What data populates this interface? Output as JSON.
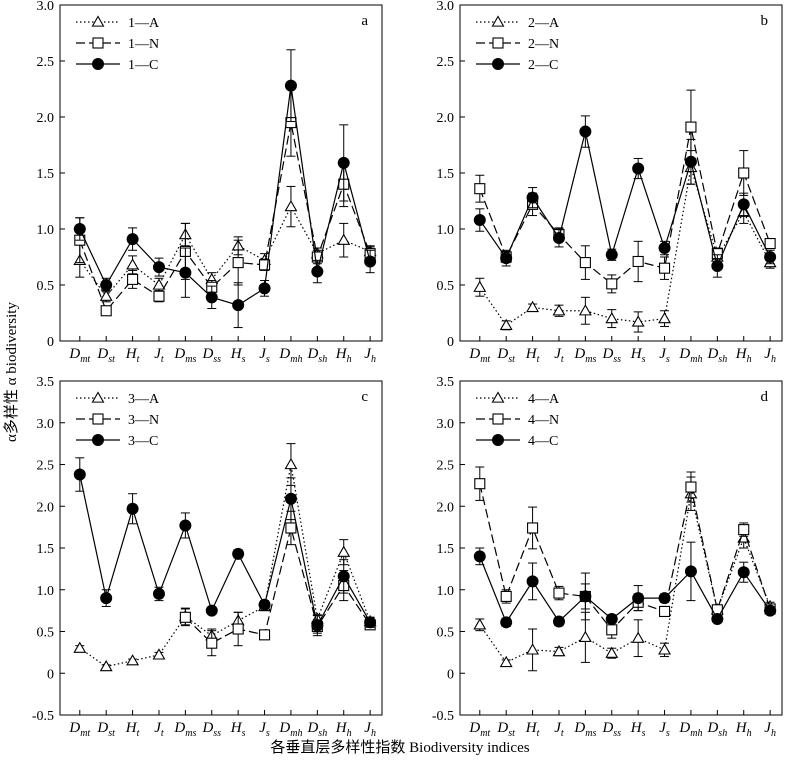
{
  "figure": {
    "ylabel": "α多样性 α biodiversity",
    "xlabel": "各垂直层多样性指数 Biodiversity indices"
  },
  "chart_data": [
    {
      "type": "line",
      "panel_label": "a",
      "categories": [
        {
          "base": "D",
          "sub": "mt"
        },
        {
          "base": "D",
          "sub": "st"
        },
        {
          "base": "H",
          "sub": "t"
        },
        {
          "base": "J",
          "sub": "t"
        },
        {
          "base": "D",
          "sub": "ms"
        },
        {
          "base": "D",
          "sub": "ss"
        },
        {
          "base": "H",
          "sub": "s"
        },
        {
          "base": "J",
          "sub": "s"
        },
        {
          "base": "D",
          "sub": "mh"
        },
        {
          "base": "D",
          "sub": "sh"
        },
        {
          "base": "H",
          "sub": "h"
        },
        {
          "base": "J",
          "sub": "h"
        }
      ],
      "ylim": [
        0,
        3.0
      ],
      "yticks": [
        0,
        0.5,
        1.0,
        1.5,
        2.0,
        2.5,
        3.0
      ],
      "legend_position": "top-left",
      "series": [
        {
          "name": "1—A",
          "marker": "triangle-open",
          "line": "dotted",
          "values": [
            0.72,
            0.4,
            0.68,
            0.5,
            0.95,
            0.55,
            0.85,
            0.72,
            1.2,
            0.78,
            0.9,
            0.8
          ],
          "errors": [
            0.15,
            0.05,
            0.08,
            0.06,
            0.1,
            0.06,
            0.08,
            0.06,
            0.18,
            0.05,
            0.15,
            0.05
          ]
        },
        {
          "name": "1—N",
          "marker": "square-open",
          "line": "dashed",
          "values": [
            0.9,
            0.27,
            0.55,
            0.4,
            0.8,
            0.48,
            0.7,
            0.68,
            1.95,
            0.75,
            1.4,
            0.78
          ],
          "errors": [
            0.2,
            0.04,
            0.08,
            0.05,
            0.25,
            0.06,
            0.2,
            0.05,
            0.3,
            0.06,
            0.2,
            0.06
          ]
        },
        {
          "name": "1—C",
          "marker": "circle-filled",
          "line": "solid",
          "values": [
            1.0,
            0.5,
            0.91,
            0.66,
            0.61,
            0.39,
            0.32,
            0.47,
            2.28,
            0.62,
            1.59,
            0.71
          ],
          "errors": [
            0.1,
            0.06,
            0.1,
            0.08,
            0.22,
            0.1,
            0.2,
            0.07,
            0.32,
            0.1,
            0.34,
            0.1
          ]
        }
      ]
    },
    {
      "type": "line",
      "panel_label": "b",
      "categories": [
        {
          "base": "D",
          "sub": "mt"
        },
        {
          "base": "D",
          "sub": "st"
        },
        {
          "base": "H",
          "sub": "t"
        },
        {
          "base": "J",
          "sub": "t"
        },
        {
          "base": "D",
          "sub": "ms"
        },
        {
          "base": "D",
          "sub": "ss"
        },
        {
          "base": "H",
          "sub": "s"
        },
        {
          "base": "J",
          "sub": "s"
        },
        {
          "base": "D",
          "sub": "mh"
        },
        {
          "base": "D",
          "sub": "sh"
        },
        {
          "base": "H",
          "sub": "h"
        },
        {
          "base": "J",
          "sub": "h"
        }
      ],
      "ylim": [
        0,
        3.0
      ],
      "yticks": [
        0,
        0.5,
        1.0,
        1.5,
        2.0,
        2.5,
        3.0
      ],
      "legend_position": "top-left",
      "series": [
        {
          "name": "2—A",
          "marker": "triangle-open",
          "line": "dotted",
          "values": [
            0.48,
            0.14,
            0.3,
            0.27,
            0.27,
            0.2,
            0.17,
            0.2,
            1.55,
            0.75,
            1.15,
            0.7
          ],
          "errors": [
            0.08,
            0.04,
            0.03,
            0.05,
            0.12,
            0.08,
            0.09,
            0.07,
            0.15,
            0.05,
            0.1,
            0.05
          ]
        },
        {
          "name": "2—N",
          "marker": "square-open",
          "line": "dashed",
          "values": [
            1.36,
            0.75,
            1.22,
            0.95,
            0.7,
            0.51,
            0.71,
            0.65,
            1.91,
            0.78,
            1.5,
            0.87
          ],
          "errors": [
            0.12,
            0.05,
            0.1,
            0.06,
            0.15,
            0.08,
            0.18,
            0.1,
            0.33,
            0.05,
            0.2,
            0.04
          ]
        },
        {
          "name": "2—C",
          "marker": "circle-filled",
          "line": "solid",
          "values": [
            1.08,
            0.74,
            1.28,
            0.92,
            1.87,
            0.77,
            1.54,
            0.83,
            1.6,
            0.67,
            1.22,
            0.75
          ],
          "errors": [
            0.1,
            0.07,
            0.09,
            0.08,
            0.14,
            0.05,
            0.09,
            0.06,
            0.2,
            0.1,
            0.1,
            0.06
          ]
        }
      ]
    },
    {
      "type": "line",
      "panel_label": "c",
      "categories": [
        {
          "base": "D",
          "sub": "mt"
        },
        {
          "base": "D",
          "sub": "st"
        },
        {
          "base": "H",
          "sub": "t"
        },
        {
          "base": "J",
          "sub": "t"
        },
        {
          "base": "D",
          "sub": "ms"
        },
        {
          "base": "D",
          "sub": "ss"
        },
        {
          "base": "H",
          "sub": "s"
        },
        {
          "base": "J",
          "sub": "s"
        },
        {
          "base": "D",
          "sub": "mh"
        },
        {
          "base": "D",
          "sub": "sh"
        },
        {
          "base": "H",
          "sub": "h"
        },
        {
          "base": "J",
          "sub": "h"
        }
      ],
      "ylim": [
        -0.5,
        3.5
      ],
      "yticks": [
        -0.5,
        0,
        0.5,
        1.0,
        1.5,
        2.0,
        2.5,
        3.0,
        3.5
      ],
      "legend_position": "top-left",
      "series": [
        {
          "name": "3—A",
          "marker": "triangle-open",
          "line": "dotted",
          "values": [
            0.3,
            0.08,
            0.15,
            0.22,
            0.68,
            0.45,
            0.63,
            0.8,
            2.5,
            0.65,
            1.45,
            0.62
          ],
          "errors": [
            0.03,
            0.02,
            0.02,
            0.03,
            0.1,
            0.08,
            0.1,
            0.05,
            0.25,
            0.05,
            0.15,
            0.05
          ]
        },
        {
          "name": "3—N",
          "marker": "square-open",
          "line": "dashed",
          "values": [
            null,
            null,
            null,
            null,
            0.67,
            0.36,
            0.53,
            0.46,
            1.74,
            0.56,
            1.05,
            0.58
          ],
          "errors": [
            null,
            null,
            null,
            null,
            0.1,
            0.15,
            0.2,
            0.03,
            0.2,
            0.08,
            0.18,
            0.05
          ]
        },
        {
          "name": "3—C",
          "marker": "circle-filled",
          "line": "solid",
          "values": [
            2.38,
            0.9,
            1.97,
            0.95,
            1.77,
            0.75,
            1.43,
            0.82,
            2.09,
            0.57,
            1.16,
            0.61
          ],
          "errors": [
            0.2,
            0.1,
            0.18,
            0.08,
            0.15,
            0.04,
            0.05,
            0.05,
            0.25,
            0.12,
            0.2,
            0.06
          ]
        }
      ]
    },
    {
      "type": "line",
      "panel_label": "d",
      "categories": [
        {
          "base": "D",
          "sub": "mt"
        },
        {
          "base": "D",
          "sub": "st"
        },
        {
          "base": "H",
          "sub": "t"
        },
        {
          "base": "J",
          "sub": "t"
        },
        {
          "base": "D",
          "sub": "ms"
        },
        {
          "base": "D",
          "sub": "ss"
        },
        {
          "base": "H",
          "sub": "s"
        },
        {
          "base": "J",
          "sub": "s"
        },
        {
          "base": "D",
          "sub": "mh"
        },
        {
          "base": "D",
          "sub": "sh"
        },
        {
          "base": "H",
          "sub": "h"
        },
        {
          "base": "J",
          "sub": "h"
        }
      ],
      "ylim": [
        -0.5,
        3.5
      ],
      "yticks": [
        -0.5,
        0,
        0.5,
        1.0,
        1.5,
        2.0,
        2.5,
        3.0,
        3.5
      ],
      "legend_position": "top-left",
      "series": [
        {
          "name": "4—A",
          "marker": "triangle-open",
          "line": "dotted",
          "values": [
            0.58,
            0.13,
            0.28,
            0.26,
            0.43,
            0.24,
            0.42,
            0.28,
            2.15,
            0.76,
            1.62,
            0.8
          ],
          "errors": [
            0.07,
            0.03,
            0.25,
            0.05,
            0.3,
            0.06,
            0.22,
            0.08,
            0.2,
            0.05,
            0.12,
            0.05
          ]
        },
        {
          "name": "4—N",
          "marker": "square-open",
          "line": "dashed",
          "values": [
            2.27,
            0.92,
            1.74,
            0.96,
            0.92,
            0.52,
            0.85,
            0.74,
            2.23,
            0.76,
            1.72,
            0.77
          ],
          "errors": [
            0.2,
            0.08,
            0.25,
            0.08,
            0.15,
            0.1,
            0.1,
            0.06,
            0.18,
            0.05,
            0.08,
            0.05
          ]
        },
        {
          "name": "4—C",
          "marker": "circle-filled",
          "line": "solid",
          "values": [
            1.4,
            0.61,
            1.1,
            0.62,
            0.92,
            0.65,
            0.9,
            0.9,
            1.22,
            0.65,
            1.21,
            0.75
          ],
          "errors": [
            0.1,
            0.05,
            0.22,
            0.05,
            0.28,
            0.05,
            0.15,
            0.05,
            0.35,
            0.04,
            0.12,
            0.04
          ]
        }
      ]
    }
  ]
}
